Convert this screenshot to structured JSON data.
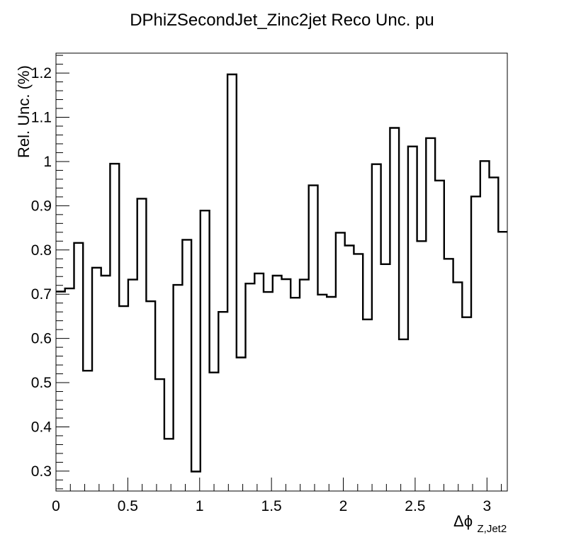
{
  "chart_data": {
    "type": "step",
    "title": "DPhiZSecondJet_Zinc2jet Reco Unc. pu",
    "ylabel": "Rel. Unc. (%)",
    "xlabel": {
      "main": "Δϕ",
      "subscript": "Z,Jet2"
    },
    "xlim": [
      0,
      3.1416
    ],
    "ylim": [
      0.255,
      1.245
    ],
    "xticks": [
      0,
      0.5,
      1,
      1.5,
      2,
      2.5,
      3
    ],
    "xtick_labels": [
      "0",
      "0.5",
      "1",
      "1.5",
      "2",
      "2.5",
      "3"
    ],
    "yticks": [
      0.3,
      0.4,
      0.5,
      0.6,
      0.7,
      0.8,
      0.9,
      1,
      1.1,
      1.2
    ],
    "ytick_labels": [
      "0.3",
      "0.4",
      "0.5",
      "0.6",
      "0.7",
      "0.8",
      "0.9",
      "1",
      "1.1",
      "1.2"
    ],
    "bin_edges": [
      0,
      3.1416
    ],
    "nbins": 50,
    "values": [
      0.706,
      0.713,
      0.816,
      0.527,
      0.76,
      0.742,
      0.995,
      0.673,
      0.733,
      0.916,
      0.684,
      0.508,
      0.373,
      0.721,
      0.823,
      0.299,
      0.889,
      0.523,
      0.66,
      1.197,
      0.557,
      0.724,
      0.747,
      0.705,
      0.742,
      0.734,
      0.692,
      0.733,
      0.946,
      0.699,
      0.694,
      0.839,
      0.81,
      0.791,
      0.643,
      0.994,
      0.768,
      1.076,
      0.598,
      1.034,
      0.82,
      1.053,
      0.957,
      0.78,
      0.727,
      0.648,
      0.921,
      1.001,
      0.964,
      0.841
    ],
    "line_color": "#000000",
    "grid": false
  }
}
